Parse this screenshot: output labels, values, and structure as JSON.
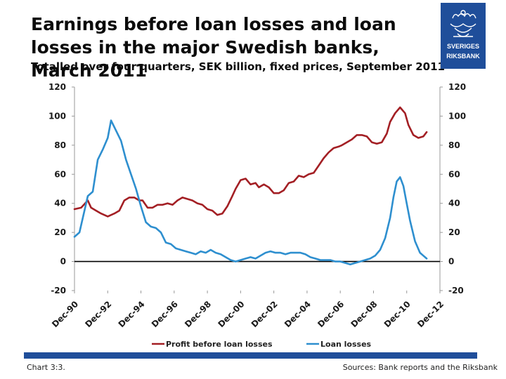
{
  "header": {
    "title": "Earnings before loan losses and loan losses in the major Swedish banks, March 2011",
    "subtitle": "Totalled over four quarters, SEK billion, fixed prices, September 2011"
  },
  "logo": {
    "line1": "SVERIGES",
    "line2": "RIKSBANK",
    "icon": "riksbank-crest-icon",
    "color": "#1f4e9a"
  },
  "footer": {
    "chart_number": "Chart 3:3.",
    "sources": "Sources: Bank reports and the Riksbank",
    "bar_color": "#1f4e9a"
  },
  "chart_data": {
    "type": "line",
    "title": "Earnings before loan losses and loan losses in the major Swedish banks, March 2011",
    "subtitle": "Totalled over four quarters, SEK billion, fixed prices, September 2011",
    "ylim": [
      -20,
      120
    ],
    "y_ticks": [
      -20,
      0,
      20,
      40,
      60,
      80,
      100,
      120
    ],
    "y_tick_labels": [
      "-20",
      "0",
      "20",
      "40",
      "60",
      "80",
      "100",
      "120"
    ],
    "secondary_y_axis": true,
    "xlim": [
      1990.0,
      2012.0
    ],
    "x_ticks": [
      1990,
      1992,
      1994,
      1996,
      1998,
      2000,
      2002,
      2004,
      2006,
      2008,
      2010,
      2012
    ],
    "x_tick_labels": [
      "Dec-90",
      "Dec-92",
      "Dec-94",
      "Dec-96",
      "Dec-98",
      "Dec-00",
      "Dec-02",
      "Dec-04",
      "Dec-06",
      "Dec-08",
      "Dec-10",
      "Dec-12"
    ],
    "grid": false,
    "legend_position": "bottom",
    "series": [
      {
        "name": "Profit before loan losses",
        "color": "#a31f24",
        "x": [
          1990.0,
          1990.4,
          1990.8,
          1991.0,
          1991.3,
          1991.6,
          1992.0,
          1992.4,
          1992.7,
          1993.0,
          1993.3,
          1993.6,
          1993.9,
          1994.1,
          1994.4,
          1994.7,
          1995.0,
          1995.3,
          1995.6,
          1995.9,
          1996.2,
          1996.5,
          1996.8,
          1997.1,
          1997.4,
          1997.7,
          1998.0,
          1998.3,
          1998.6,
          1998.9,
          1999.2,
          1999.5,
          1999.7,
          2000.0,
          2000.3,
          2000.6,
          2000.9,
          2001.1,
          2001.4,
          2001.7,
          2002.0,
          2002.3,
          2002.6,
          2002.9,
          2003.2,
          2003.5,
          2003.8,
          2004.1,
          2004.4,
          2004.7,
          2005.0,
          2005.3,
          2005.6,
          2005.9,
          2006.1,
          2006.4,
          2006.7,
          2007.0,
          2007.3,
          2007.6,
          2007.9,
          2008.2,
          2008.5,
          2008.8,
          2009.0,
          2009.3,
          2009.6,
          2009.9,
          2010.1,
          2010.4,
          2010.7,
          2011.0,
          2011.2
        ],
        "values": [
          36,
          37,
          42,
          37,
          35,
          33,
          31,
          33,
          35,
          42,
          44,
          44,
          42,
          42,
          37,
          37,
          39,
          39,
          40,
          39,
          42,
          44,
          43,
          42,
          40,
          39,
          36,
          35,
          32,
          33,
          38,
          45,
          50,
          56,
          57,
          53,
          54,
          51,
          53,
          51,
          47,
          47,
          49,
          54,
          55,
          59,
          58,
          60,
          61,
          66,
          71,
          75,
          78,
          79,
          80,
          82,
          84,
          87,
          87,
          86,
          82,
          81,
          82,
          88,
          96,
          102,
          106,
          102,
          94,
          87,
          85,
          86,
          89
        ]
      },
      {
        "name": "Loan losses",
        "color": "#2e8fcf",
        "x": [
          1990.0,
          1990.3,
          1990.6,
          1990.8,
          1991.1,
          1991.4,
          1991.7,
          1992.0,
          1992.2,
          1992.5,
          1992.8,
          1993.1,
          1993.4,
          1993.7,
          1994.0,
          1994.3,
          1994.6,
          1994.9,
          1995.2,
          1995.5,
          1995.8,
          1996.1,
          1996.4,
          1996.7,
          1997.0,
          1997.3,
          1997.6,
          1997.9,
          1998.2,
          1998.5,
          1998.8,
          1999.1,
          1999.4,
          1999.7,
          2000.0,
          2000.3,
          2000.6,
          2000.9,
          2001.2,
          2001.5,
          2001.8,
          2002.1,
          2002.4,
          2002.7,
          2003.0,
          2003.3,
          2003.6,
          2003.9,
          2004.2,
          2004.5,
          2004.8,
          2005.1,
          2005.4,
          2005.7,
          2006.0,
          2006.3,
          2006.6,
          2006.9,
          2007.2,
          2007.5,
          2007.8,
          2008.1,
          2008.4,
          2008.7,
          2009.0,
          2009.2,
          2009.4,
          2009.6,
          2009.8,
          2010.0,
          2010.2,
          2010.5,
          2010.8,
          2011.0,
          2011.2
        ],
        "values": [
          17,
          20,
          35,
          45,
          48,
          70,
          77,
          85,
          97,
          90,
          83,
          70,
          60,
          50,
          38,
          27,
          24,
          23,
          20,
          13,
          12,
          9,
          8,
          7,
          6,
          5,
          7,
          6,
          8,
          6,
          5,
          3,
          1,
          0,
          1,
          2,
          3,
          2,
          4,
          6,
          7,
          6,
          6,
          5,
          6,
          6,
          6,
          5,
          3,
          2,
          1,
          1,
          1,
          0,
          0,
          -1,
          -2,
          -1,
          0,
          1,
          2,
          4,
          8,
          16,
          30,
          44,
          55,
          58,
          52,
          40,
          28,
          14,
          6,
          4,
          2
        ]
      }
    ]
  }
}
